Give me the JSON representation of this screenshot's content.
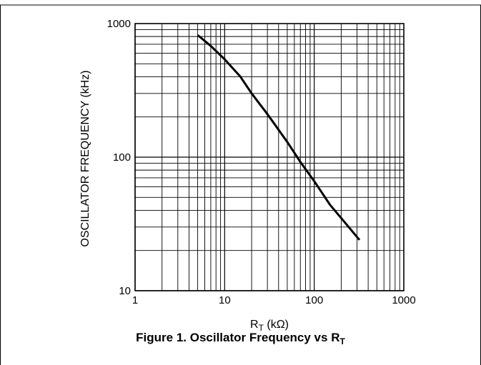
{
  "chart_data": {
    "type": "line",
    "xscale": "log",
    "yscale": "log",
    "xlim": [
      1,
      1000
    ],
    "ylim": [
      10,
      1000
    ],
    "grid": true,
    "x_ticks": [
      1,
      10,
      100,
      1000
    ],
    "y_ticks": [
      10,
      100,
      1000
    ],
    "x_tick_labels": [
      "1",
      "10",
      "100",
      "1000"
    ],
    "y_tick_labels": [
      "10",
      "100",
      "1000"
    ],
    "xlabel": {
      "main": "R",
      "sub": "T",
      "unit": " (kΩ)"
    },
    "ylabel": "OSCILLATOR FREQUENCY (kHz)",
    "series": [
      {
        "x": [
          5,
          7,
          10,
          15,
          20,
          30,
          50,
          70,
          100,
          150,
          200,
          320
        ],
        "y": [
          820,
          680,
          540,
          400,
          300,
          210,
          130,
          92,
          66,
          44,
          35,
          24
        ]
      }
    ]
  },
  "caption": {
    "main": "Figure 1.  Oscillator Frequency vs R",
    "sub": "T"
  }
}
